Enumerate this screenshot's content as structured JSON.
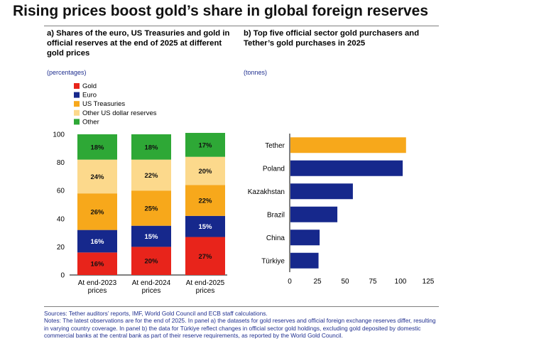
{
  "headline": "Rising prices boost gold’s share in global foreign reserves",
  "panel_a": {
    "title": "a) Shares of the euro, US Treasuries and gold in official reserves at the end of 2025 at different gold prices",
    "unit": "(percentages)"
  },
  "panel_b": {
    "title": "b) Top five official sector gold purchasers and Tether’s gold purchases in 2025",
    "unit": "(tonnes)"
  },
  "chart_data": [
    {
      "type": "bar",
      "stacked": true,
      "orientation": "vertical",
      "categories": [
        "At end-2023 prices",
        "At end-2024 prices",
        "At end-2025 prices"
      ],
      "ylim": [
        0,
        100
      ],
      "yticks": [
        0,
        20,
        40,
        60,
        80,
        100
      ],
      "legend": "top-left",
      "series": [
        {
          "name": "Gold",
          "color": "#e8241b",
          "values": [
            16,
            20,
            27
          ],
          "labels": [
            "16%",
            "20%",
            "27%"
          ]
        },
        {
          "name": "Euro",
          "color": "#16288c",
          "values": [
            16,
            15,
            15
          ],
          "labels": [
            "16%",
            "15%",
            "15%"
          ]
        },
        {
          "name": "US Treasuries",
          "color": "#f7a81b",
          "values": [
            26,
            25,
            22
          ],
          "labels": [
            "26%",
            "25%",
            "22%"
          ]
        },
        {
          "name": "Other US dollar reserves",
          "color": "#fcd98c",
          "values": [
            24,
            22,
            20
          ],
          "labels": [
            "24%",
            "22%",
            "20%"
          ]
        },
        {
          "name": "Other",
          "color": "#2ea836",
          "values": [
            18,
            18,
            17
          ],
          "labels": [
            "18%",
            "18%",
            "17%"
          ]
        }
      ]
    },
    {
      "type": "bar",
      "orientation": "horizontal",
      "categories": [
        "Tether",
        "Poland",
        "Kazakhstan",
        "Brazil",
        "China",
        "Türkiye"
      ],
      "values": [
        105,
        102,
        57,
        43,
        27,
        26
      ],
      "colors": [
        "#f7a81b",
        "#16288c",
        "#16288c",
        "#16288c",
        "#16288c",
        "#16288c"
      ],
      "xlim": [
        0,
        125
      ],
      "xticks": [
        0,
        25,
        50,
        75,
        100,
        125
      ]
    }
  ],
  "notes": {
    "sources": "Sources: Tether auditors’ reports, IMF, World Gold Council and ECB staff calculations.",
    "body": "Notes: The latest observations are for the end of 2025. In panel a) the datasets for gold reserves and official foreign exchange reserves differ, resulting in varying country coverage. In panel b) the data for Türkiye reflect changes in official sector gold holdings, excluding gold deposited by domestic commercial banks at the central bank as part of their reserve requirements, as reported by the World Gold Council."
  }
}
